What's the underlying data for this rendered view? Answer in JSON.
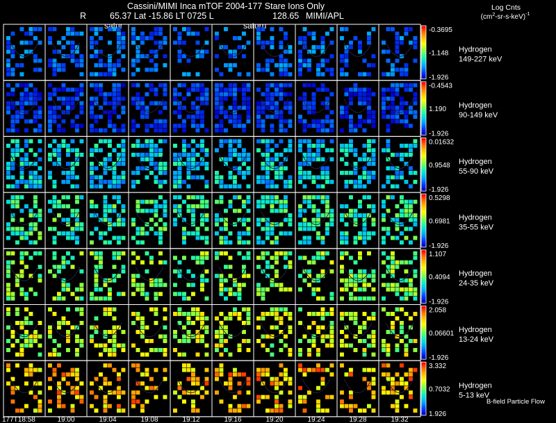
{
  "chart_data": {
    "type": "heatmap",
    "title": "Cassini/MIMI Inca mTOF  2004-177   Stare   Ions Only",
    "subtitle": {
      "r_label": "R",
      "geometry": "65.37 Lat -15.86 LT 0725 L",
      "l_value": "128.65",
      "institution": "MIMI/APL"
    },
    "units_label": {
      "line1": "Log Cnts",
      "line2_pre": "(cm",
      "line2_sup": "2",
      "line2_post": "-sr-s-keV)",
      "line2_exp": "-1"
    },
    "saturn_labels": [
      {
        "column": 1,
        "text": "satur"
      },
      {
        "column": 5,
        "text": "saturn"
      }
    ],
    "time_labels": [
      "177T18:58",
      "19:00",
      "19:04",
      "19:08",
      "19:12",
      "19:16",
      "19:20",
      "19:24",
      "19:28",
      "19:32"
    ],
    "footer_note": "B-field Particle Flow",
    "colormap": [
      "#0000cc",
      "#0040ff",
      "#00a0ff",
      "#00e0e0",
      "#30ff90",
      "#a0ff30",
      "#ffff00",
      "#ffc000",
      "#ff7000",
      "#ff0000"
    ],
    "rows": [
      {
        "species": "Hydrogen",
        "energy": "149-227 keV",
        "cbar_max": "-0.3695",
        "cbar_mid": "-1.148",
        "cbar_min": "-1.926",
        "level_min": 0.05,
        "level_max": 0.25,
        "density": 0.4
      },
      {
        "species": "Hydrogen",
        "energy": "90-149 keV",
        "cbar_max": "-0.4543",
        "cbar_mid": "1.190",
        "cbar_min": "-1.926",
        "level_min": 0.0,
        "level_max": 0.18,
        "density": 0.6
      },
      {
        "species": "Hydrogen",
        "energy": "55-90 keV",
        "cbar_max": "0.01632",
        "cbar_mid": "0.9548",
        "cbar_min": "-1.926",
        "level_min": 0.15,
        "level_max": 0.45,
        "density": 0.55
      },
      {
        "species": "Hydrogen",
        "energy": "35-55 keV",
        "cbar_max": "0.5298",
        "cbar_mid": "0.6981",
        "cbar_min": "-1.926",
        "level_min": 0.25,
        "level_max": 0.55,
        "density": 0.5
      },
      {
        "species": "Hydrogen",
        "energy": "24-35 keV",
        "cbar_max": "1.107",
        "cbar_mid": "0.4094",
        "cbar_min": "-1.926",
        "level_min": 0.35,
        "level_max": 0.65,
        "density": 0.4
      },
      {
        "species": "Hydrogen",
        "energy": "13-24 keV",
        "cbar_max": "2.058",
        "cbar_mid": "0.06601",
        "cbar_min": "-1.926",
        "level_min": 0.45,
        "level_max": 0.75,
        "density": 0.4
      },
      {
        "species": "Hydrogen",
        "energy": "5-13 keV",
        "cbar_max": "3.332",
        "cbar_mid": "0.7032",
        "cbar_min": "1.926",
        "level_min": 0.6,
        "level_max": 0.95,
        "density": 0.35
      }
    ]
  }
}
